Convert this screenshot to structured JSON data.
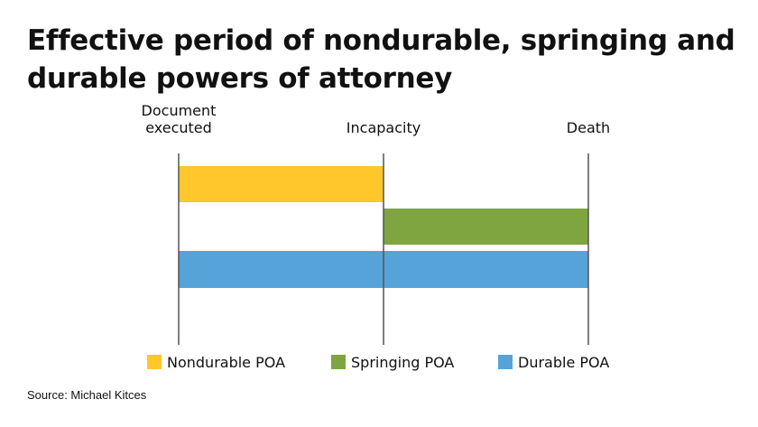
{
  "title": "Effective period of nondurable, springing and durable powers of attorney",
  "source": "Source: Michael Kitces",
  "chart_data": {
    "type": "bar",
    "orientation": "horizontal-gantt",
    "milestones": [
      {
        "label": [
          "Document",
          "executed"
        ]
      },
      {
        "label": [
          "Incapacity"
        ]
      },
      {
        "label": [
          "Death"
        ]
      }
    ],
    "series": [
      {
        "name": "Nondurable POA",
        "start": "Document executed",
        "end": "Incapacity",
        "color": "#FFC72C"
      },
      {
        "name": "Springing POA",
        "start": "Incapacity",
        "end": "Death",
        "color": "#7FA540"
      },
      {
        "name": "Durable POA",
        "start": "Document executed",
        "end": "Death",
        "color": "#56A3D9"
      }
    ],
    "legend_position": "bottom",
    "grid": false
  }
}
